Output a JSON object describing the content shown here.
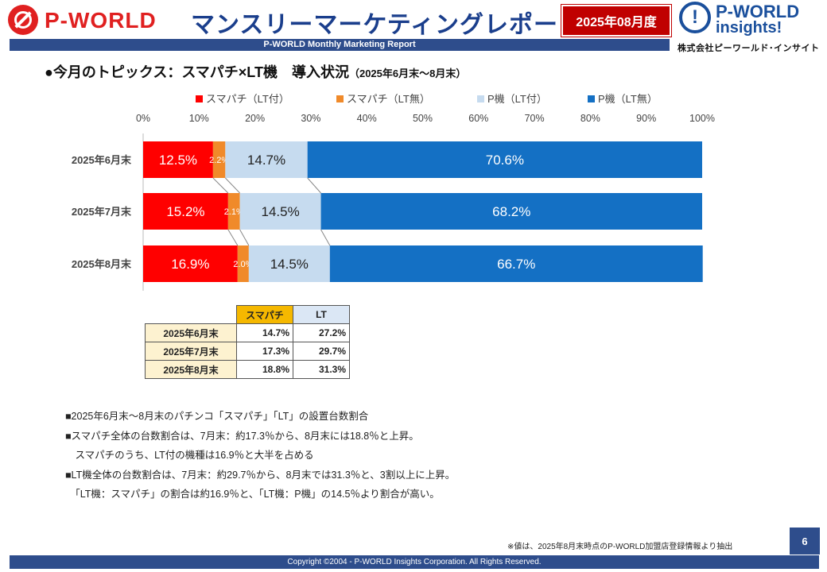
{
  "header": {
    "logo_left_text": "P-WORLD",
    "title": "マンスリーマーケティングレポート",
    "period_badge": "2025年08月度",
    "logo_right_line1": "P-WORLD",
    "logo_right_line2": "insights!",
    "company": "株式会社ピーワールド･インサイト",
    "subtitle_bar": "P-WORLD Monthly Marketing Report"
  },
  "topic": {
    "title": "●今月のトピックス：スマパチ×LT機　導入状況",
    "period": "（2025年6月末～8月末）"
  },
  "colors": {
    "smapachi_lt": "#ff0000",
    "smapachi_no_lt": "#f08a2a",
    "p_lt": "#c6dbef",
    "p_no_lt": "#1470c4",
    "brand_blue": "#2e4d8c",
    "brand_red": "#c00000"
  },
  "chart_data": {
    "type": "bar",
    "orientation": "horizontal",
    "stacked": "percent",
    "categories": [
      "2025年6月末",
      "2025年7月末",
      "2025年8月末"
    ],
    "series": [
      {
        "name": "スマパチ（LT付）",
        "values": [
          12.5,
          15.2,
          16.9
        ],
        "labels": [
          "12.5%",
          "15.2%",
          "16.9%"
        ]
      },
      {
        "name": "スマパチ（LT無）",
        "values": [
          2.2,
          2.1,
          2.0
        ],
        "labels": [
          "2.2%",
          "2.1%",
          "2.0%"
        ]
      },
      {
        "name": "P機（LT付）",
        "values": [
          14.7,
          14.5,
          14.5
        ],
        "labels": [
          "14.7%",
          "14.5%",
          "14.5%"
        ]
      },
      {
        "name": "P機（LT無）",
        "values": [
          70.6,
          68.2,
          66.7
        ],
        "labels": [
          "70.6%",
          "68.2%",
          "66.7%"
        ]
      }
    ],
    "x_ticks": [
      "0%",
      "10%",
      "20%",
      "30%",
      "40%",
      "50%",
      "60%",
      "70%",
      "80%",
      "90%",
      "100%"
    ],
    "xlim": [
      0,
      100
    ],
    "legend_position": "top",
    "series_lines": true
  },
  "summary_table": {
    "headers": [
      "スマパチ",
      "LT"
    ],
    "rows": [
      {
        "label": "2025年6月末",
        "smapachi": "14.7%",
        "lt": "27.2%"
      },
      {
        "label": "2025年7月末",
        "smapachi": "17.3%",
        "lt": "29.7%"
      },
      {
        "label": "2025年8月末",
        "smapachi": "18.8%",
        "lt": "31.3%"
      }
    ]
  },
  "notes": [
    "■2025年6月末～8月末のパチンコ「スマパチ」「LT」の設置台数割合",
    "■スマパチ全体の台数割合は、7月末：約17.3％から、8月末には18.8％と上昇。",
    "　スマパチのうち、LT付の機種は16.9％と大半を占める",
    "■LT機全体の台数割合は、7月末：約29.7％から、8月末では31.3％と、3割以上に上昇。",
    "　「LT機：スマパチ」の割合は約16.9％と、「LT機：P機」の14.5％より割合が高い。"
  ],
  "source_note": "※値は、2025年8月末時点のP-WORLD加盟店登録情報より抽出",
  "page_number": "6",
  "footer": "Copyright ©2004 - P-WORLD Insights Corporation. All Rights Reserved."
}
